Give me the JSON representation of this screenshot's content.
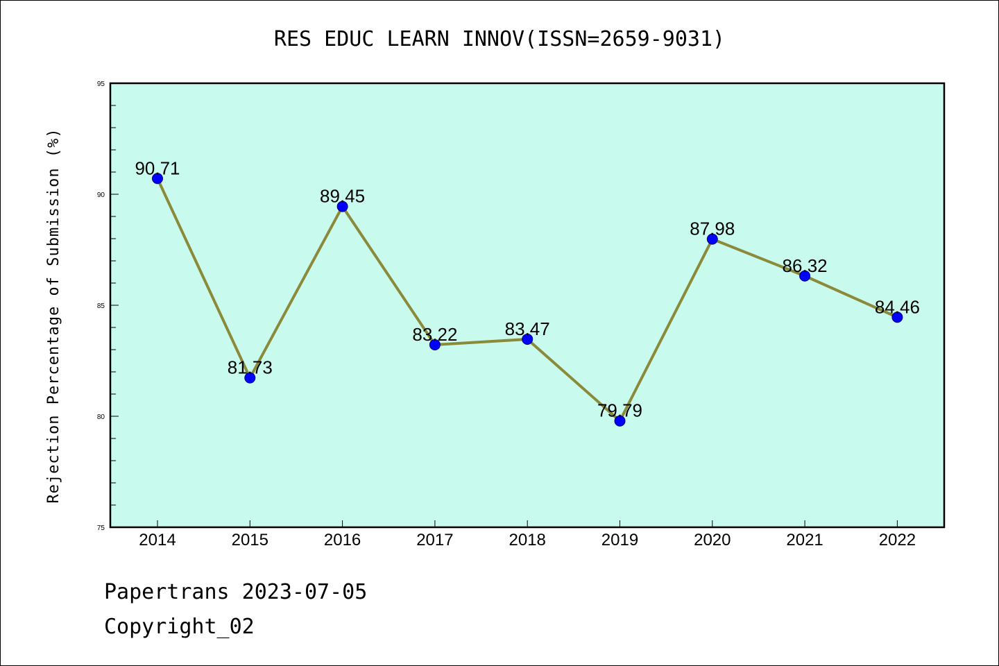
{
  "chart_data": {
    "type": "line",
    "title": "RES EDUC LEARN INNOV(ISSN=2659-9031)",
    "ylabel": "Rejection Percentage of Submission (%)",
    "xlabel": "",
    "categories": [
      "2014",
      "2015",
      "2016",
      "2017",
      "2018",
      "2019",
      "2020",
      "2021",
      "2022"
    ],
    "values": [
      90.71,
      81.73,
      89.45,
      83.22,
      83.47,
      79.79,
      87.98,
      86.32,
      84.46
    ],
    "data_labels": [
      "90.71",
      "81.73",
      "89.45",
      "83.22",
      "83.47",
      "79.79",
      "87.98",
      "86.32",
      "84.46"
    ],
    "ylim": [
      75,
      95
    ],
    "yticks": [
      75,
      80,
      85,
      90,
      95
    ],
    "grid": false,
    "colors": {
      "plot_background": "#c8fbee",
      "line": "#8b8a3a",
      "marker": "#0000ff"
    }
  },
  "footer": {
    "line1": "Papertrans 2023-07-05",
    "line2": "Copyright_02"
  }
}
